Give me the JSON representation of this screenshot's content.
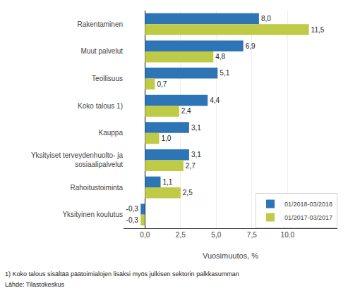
{
  "chart_data": {
    "type": "bar",
    "orientation": "horizontal",
    "categories": [
      "Rakentaminen",
      "Muut palvelut",
      "Teollisuus",
      "Koko talous 1)",
      "Kauppa",
      "Yksityiset terveydenhuolto- ja\nsosiaalipalvelut",
      "Rahoitustoiminta",
      "Yksityinen koulutus"
    ],
    "series": [
      {
        "name": "01/2018-03/2018",
        "color": "#2E75B6",
        "values": [
          8.0,
          6.9,
          5.1,
          4.4,
          3.1,
          3.1,
          1.1,
          -0.3
        ],
        "value_labels": [
          "8,0",
          "6,9",
          "5,1",
          "4,4",
          "3,1",
          "3,1",
          "1,1",
          "-0,3"
        ]
      },
      {
        "name": "01/2017-03/2017",
        "color": "#BFCA46",
        "values": [
          11.5,
          4.8,
          0.7,
          2.4,
          1.0,
          2.7,
          2.5,
          -0.3
        ],
        "value_labels": [
          "11,5",
          "4,8",
          "0,7",
          "2,4",
          "1,0",
          "2,7",
          "2,5",
          "-0,3"
        ]
      }
    ],
    "xlabel": "Vuosimuutos, %",
    "xlim": [
      -1.5,
      13.5
    ],
    "xticks": [
      {
        "value": 0.0,
        "label": "0,0"
      },
      {
        "value": 2.5,
        "label": "2,5"
      },
      {
        "value": 5.0,
        "label": "5,0"
      },
      {
        "value": 7.5,
        "label": "7,5"
      },
      {
        "value": 10.0,
        "label": "10,0"
      }
    ],
    "grid": true,
    "legend": "lower right",
    "data_labels": true,
    "annotations": [
      "1) Koko talous sisältää päätoimialojen lisäksi myös julkisen sektorin palkkasumman",
      "Lähde: Tilastokeskus"
    ]
  }
}
